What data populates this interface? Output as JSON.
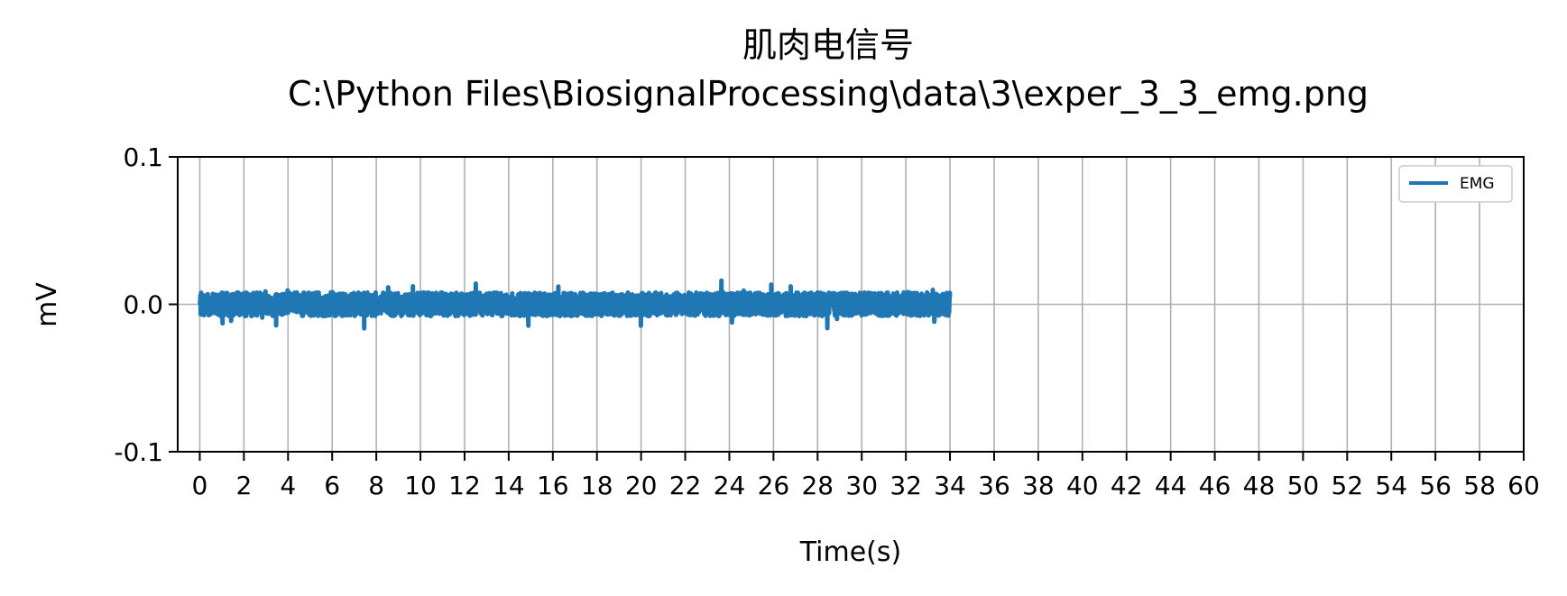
{
  "chart_data": {
    "type": "line",
    "title_line1": "肌肉电信号",
    "title_line2": "C:\\Python Files\\BiosignalProcessing\\data\\3\\exper_3_3_emg.png",
    "xlabel": "Time(s)",
    "ylabel": "mV",
    "xlim": [
      -1,
      60
    ],
    "ylim": [
      -0.1,
      0.1
    ],
    "x_ticks": [
      0,
      2,
      4,
      6,
      8,
      10,
      12,
      14,
      16,
      18,
      20,
      22,
      24,
      26,
      28,
      30,
      32,
      34,
      36,
      38,
      40,
      42,
      44,
      46,
      48,
      50,
      52,
      54,
      56,
      58,
      60
    ],
    "x_tick_labels": [
      "0",
      "2",
      "4",
      "6",
      "8",
      "10",
      "12",
      "14",
      "16",
      "18",
      "20",
      "22",
      "24",
      "26",
      "28",
      "30",
      "32",
      "34",
      "36",
      "38",
      "40",
      "42",
      "44",
      "46",
      "48",
      "50",
      "52",
      "54",
      "56",
      "58",
      "60"
    ],
    "y_ticks": [
      -0.1,
      0.0,
      0.1
    ],
    "y_tick_labels": [
      "-0.1",
      "0.0",
      "0.1"
    ],
    "grid": true,
    "legend_position": "top-right",
    "series": [
      {
        "name": "EMG",
        "color": "#1f77b4",
        "x_range": [
          0,
          34
        ],
        "amplitude_typical": 0.008,
        "amplitude_peak": 0.017
      }
    ]
  }
}
